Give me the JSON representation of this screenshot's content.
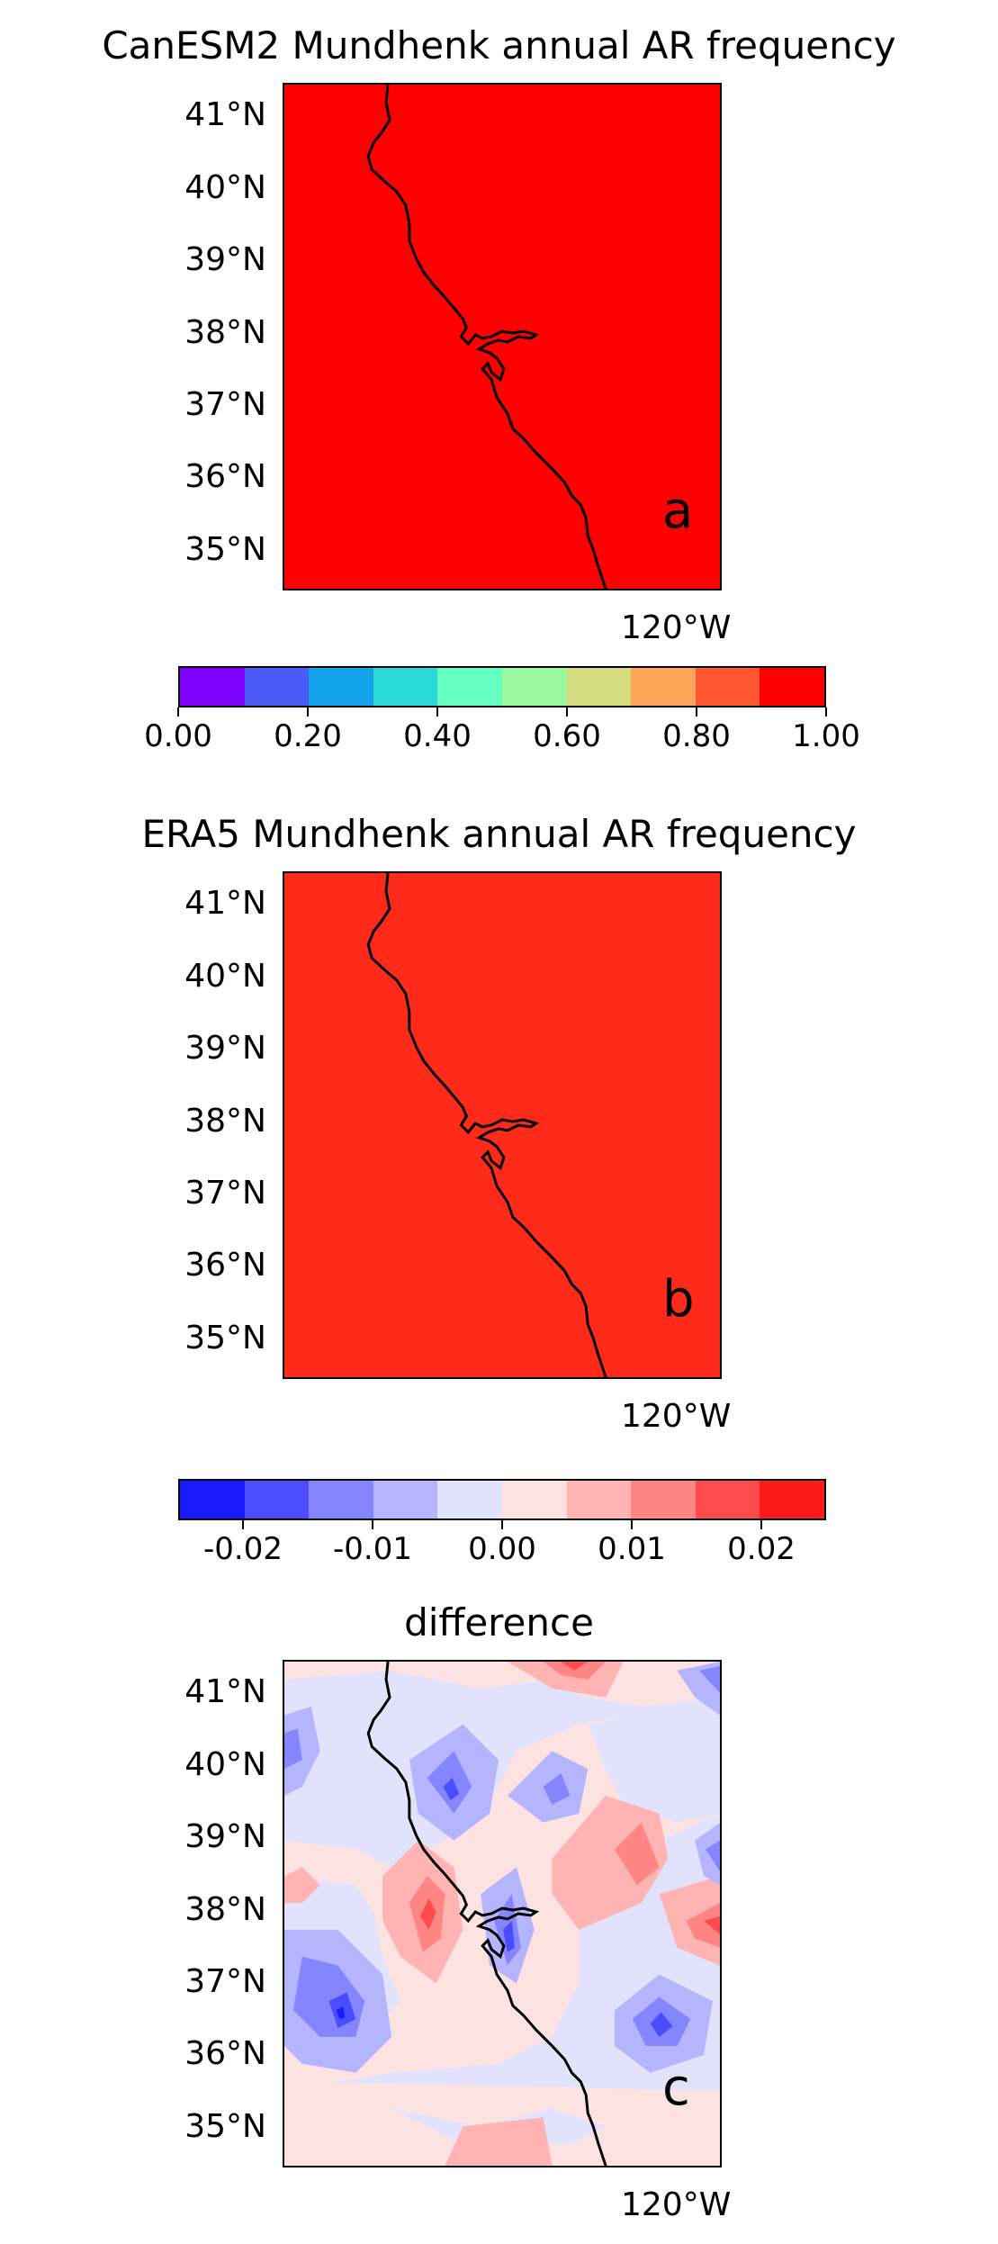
{
  "panels": [
    {
      "title": "CanESM2 Mundhenk annual AR frequency",
      "letter": "a",
      "fill": "#ff0000",
      "yticks": [
        "41°N",
        "40°N",
        "39°N",
        "38°N",
        "37°N",
        "36°N",
        "35°N"
      ],
      "xtick": "120°W"
    },
    {
      "title": "ERA5 Mundhenk annual AR frequency",
      "letter": "b",
      "fill": "#ff2a1a",
      "yticks": [
        "41°N",
        "40°N",
        "39°N",
        "38°N",
        "37°N",
        "36°N",
        "35°N"
      ],
      "xtick": "120°W"
    },
    {
      "title": "difference",
      "letter": "c",
      "yticks": [
        "41°N",
        "40°N",
        "39°N",
        "38°N",
        "37°N",
        "36°N",
        "35°N"
      ],
      "xtick": "120°W"
    }
  ],
  "colorbar_frequency": {
    "colors": [
      "#8000ff",
      "#4a5bf8",
      "#12a3ea",
      "#2bd9d9",
      "#63ffc0",
      "#9cf89e",
      "#d4dc7f",
      "#ffa65b",
      "#ff5530",
      "#ff0000"
    ],
    "ticks": [
      "0.00",
      "0.20",
      "0.40",
      "0.60",
      "0.80",
      "1.00"
    ]
  },
  "colorbar_difference": {
    "colors": [
      "#1a1aff",
      "#4b4bff",
      "#8585ff",
      "#b5b5ff",
      "#e2e2fc",
      "#fde2e2",
      "#ffb3b3",
      "#ff8585",
      "#ff4b4b",
      "#ff1a1a"
    ],
    "ticks": [
      "-0.02",
      "-0.01",
      "0.00",
      "0.01",
      "0.02"
    ],
    "label": "difference"
  }
}
